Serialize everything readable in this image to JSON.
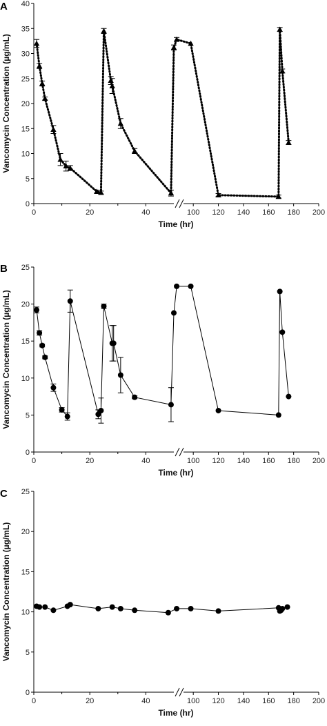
{
  "chart_data": [
    {
      "type": "line",
      "panel_label": "A",
      "xlabel": "Time (hr)",
      "ylabel": "Vancomycin Concentration (µg/mL)",
      "ylim": [
        0,
        40
      ],
      "yticks": [
        0,
        5,
        10,
        15,
        20,
        25,
        30,
        35,
        40
      ],
      "xticks_left": [
        0,
        20,
        40
      ],
      "xticks_right": [
        100,
        120,
        140,
        160,
        180,
        200
      ],
      "axis_break": true,
      "line_style": "dotted",
      "marker": "triangle",
      "series": [
        {
          "x": [
            1,
            2,
            3,
            4,
            7,
            9.5,
            11.5,
            13,
            22.5,
            24,
            25,
            27.5,
            28,
            31,
            36,
            49,
            50,
            51,
            98,
            120,
            168,
            169,
            171,
            176
          ],
          "y": [
            32,
            27.5,
            24,
            21,
            14.8,
            8.8,
            7.5,
            7.1,
            2.4,
            2.2,
            34.5,
            24.6,
            23.5,
            16,
            10.5,
            2.1,
            31.2,
            32.8,
            32,
            1.7,
            1.4,
            34.8,
            26.5,
            12.2
          ],
          "err": [
            0.8,
            0.5,
            0.5,
            0.3,
            0.8,
            1.2,
            1,
            0.5,
            0.3,
            0.3,
            0.5,
            0.8,
            1.5,
            1,
            0.5,
            0.6,
            0.5,
            0.4,
            0,
            0.3,
            0.3,
            0.4,
            0.4,
            0.4
          ]
        }
      ]
    },
    {
      "type": "line",
      "panel_label": "B",
      "xlabel": "Time (hr)",
      "ylabel": "Vancomycin Concentration (µg/mL)",
      "ylim": [
        0,
        25
      ],
      "yticks": [
        0,
        5,
        10,
        15,
        20,
        25
      ],
      "xticks_left": [
        0,
        20,
        40
      ],
      "xticks_right": [
        100,
        120,
        140,
        160,
        180,
        200
      ],
      "axis_break": true,
      "line_style": "solid",
      "marker": "circle",
      "series": [
        {
          "x": [
            1,
            2,
            3,
            4,
            7,
            10,
            12,
            13,
            23,
            24,
            25,
            28,
            28.5,
            31,
            36,
            49,
            50,
            51,
            98,
            120,
            168,
            169,
            171,
            176
          ],
          "y": [
            19.2,
            16.1,
            14.4,
            12.8,
            8.7,
            5.7,
            4.8,
            20.4,
            5.1,
            5.6,
            19.7,
            14.7,
            14.7,
            10.4,
            7.4,
            6.4,
            18.8,
            22.4,
            22.4,
            5.6,
            5,
            21.7,
            16.2,
            7.5
          ],
          "err": [
            0.4,
            0.3,
            0.2,
            0.2,
            0.5,
            0.3,
            0.5,
            1.5,
            0.6,
            1.7,
            0.3,
            2.4,
            2.4,
            2.4,
            0.2,
            2.3,
            0,
            0,
            0,
            0,
            0,
            0,
            0,
            0
          ]
        }
      ]
    },
    {
      "type": "line",
      "panel_label": "C",
      "xlabel": "Time (hr)",
      "ylabel": "Vancomycin Concentration (µg/mL)",
      "ylim": [
        0,
        25
      ],
      "yticks": [
        0,
        5,
        10,
        15,
        20,
        25
      ],
      "xticks_left": [
        0,
        20,
        40
      ],
      "xticks_right": [
        100,
        120,
        140,
        160,
        180,
        200
      ],
      "axis_break": true,
      "line_style": "solid",
      "marker": "circle",
      "series": [
        {
          "x": [
            1,
            2,
            4,
            7,
            12,
            13,
            23,
            28,
            31,
            36,
            48,
            51,
            98,
            120,
            168,
            169,
            170,
            171,
            175
          ],
          "y": [
            10.7,
            10.6,
            10.6,
            10.2,
            10.7,
            10.9,
            10.4,
            10.6,
            10.4,
            10.2,
            9.9,
            10.4,
            10.4,
            10.1,
            10.5,
            10.1,
            10.2,
            10.4,
            10.6
          ],
          "err": [
            0,
            0,
            0,
            0,
            0,
            0,
            0,
            0,
            0,
            0,
            0,
            0,
            0,
            0,
            0,
            0,
            0,
            0,
            0
          ]
        }
      ]
    }
  ]
}
